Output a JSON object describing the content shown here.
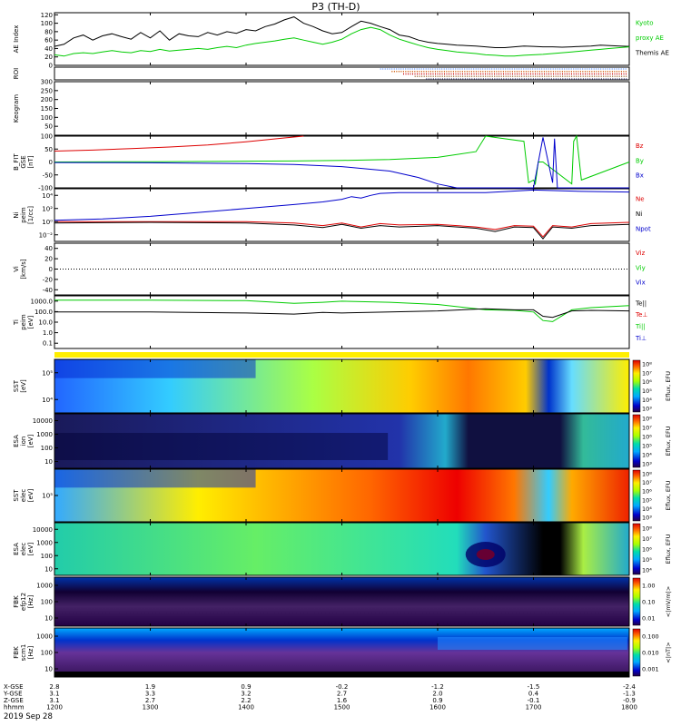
{
  "title": "P3 (TH-D)",
  "date_label": "2019 Sep 28",
  "colors": {
    "kyoto": "#00cc00",
    "black": "#000000",
    "red": "#dd0000",
    "green": "#00cc00",
    "blue": "#0000cc",
    "roi": "#cc5500"
  },
  "chart_data": [
    {
      "type": "line",
      "id": "ae",
      "ylabel": "AE Index",
      "yticks": [
        "0",
        "20",
        "40",
        "60",
        "80",
        "100",
        "120"
      ],
      "ylim": [
        0,
        125
      ],
      "legend": [
        {
          "text": "Kyoto",
          "color": "#00cc00"
        },
        {
          "text": "proxy AE",
          "color": "#00cc00"
        },
        {
          "text": "Themis AE",
          "color": "#000000"
        }
      ],
      "series": [
        {
          "name": "Themis AE",
          "x": [
            1200,
            1210,
            1220,
            1230,
            1240,
            1250,
            1260,
            1270,
            1280,
            1290,
            1300,
            1310,
            1320,
            1330,
            1340,
            1350,
            1360,
            1370,
            1380,
            1390,
            1400,
            1410,
            1420,
            1430,
            1440,
            1450,
            1460,
            1470,
            1480,
            1490,
            1500,
            1510,
            1520,
            1530,
            1540,
            1550,
            1560,
            1570,
            1580,
            1590,
            1600,
            1610,
            1620,
            1630,
            1640,
            1650,
            1660,
            1670,
            1680,
            1690,
            1700,
            1710,
            1720,
            1730,
            1740,
            1750,
            1760,
            1770,
            1780,
            1790,
            1800
          ],
          "values": [
            45,
            50,
            65,
            72,
            60,
            70,
            75,
            68,
            62,
            78,
            65,
            82,
            60,
            75,
            70,
            68,
            78,
            72,
            80,
            76,
            85,
            82,
            92,
            98,
            108,
            115,
            100,
            92,
            82,
            75,
            78,
            92,
            105,
            100,
            92,
            85,
            72,
            68,
            60,
            55,
            52,
            50,
            48,
            47,
            46,
            44,
            42,
            42,
            44,
            46,
            45,
            44,
            44,
            43,
            44,
            45,
            46,
            48,
            47,
            46,
            45
          ]
        },
        {
          "name": "Kyoto proxy AE",
          "x": [
            1200,
            1210,
            1220,
            1230,
            1240,
            1250,
            1260,
            1270,
            1280,
            1290,
            1300,
            1310,
            1320,
            1330,
            1340,
            1350,
            1360,
            1370,
            1380,
            1390,
            1400,
            1410,
            1420,
            1430,
            1440,
            1450,
            1460,
            1470,
            1480,
            1490,
            1500,
            1510,
            1520,
            1530,
            1540,
            1550,
            1560,
            1570,
            1580,
            1590,
            1600,
            1610,
            1620,
            1630,
            1640,
            1650,
            1660,
            1670,
            1680,
            1690,
            1700,
            1710,
            1720,
            1730,
            1740,
            1750,
            1760,
            1770,
            1780,
            1790,
            1800
          ],
          "values": [
            25,
            22,
            28,
            30,
            28,
            32,
            35,
            32,
            30,
            35,
            33,
            38,
            34,
            36,
            38,
            40,
            38,
            42,
            45,
            42,
            48,
            52,
            55,
            58,
            62,
            65,
            60,
            55,
            50,
            55,
            62,
            75,
            85,
            90,
            85,
            72,
            62,
            55,
            48,
            42,
            38,
            35,
            32,
            30,
            28,
            25,
            24,
            22,
            22,
            24,
            25,
            26,
            28,
            30,
            32,
            34,
            36,
            38,
            40,
            42,
            44
          ]
        }
      ]
    },
    {
      "type": "scatter",
      "id": "roi",
      "ylabel": "ROI",
      "rows": 5,
      "x_start": 1540,
      "x_end": 1800
    },
    {
      "type": "line",
      "id": "keogram",
      "ylabel": "Keogram",
      "yticks": [
        "50",
        "100",
        "150",
        "200",
        "250",
        "300"
      ],
      "ylim": [
        0,
        300
      ]
    },
    {
      "type": "line",
      "id": "bfield",
      "ylabel": "B_FIT",
      "ylabel2": "GSE",
      "ylabel3": "[nT]",
      "yticks": [
        "-100",
        "-50",
        "0",
        "50",
        "100"
      ],
      "ylim": [
        -100,
        100
      ],
      "legend": [
        {
          "text": "Bz",
          "color": "#dd0000"
        },
        {
          "text": "By",
          "color": "#00cc00"
        },
        {
          "text": "Bx",
          "color": "#0000cc"
        }
      ],
      "series": [
        {
          "name": "Bz",
          "x": [
            1200,
            1240,
            1280,
            1320,
            1360,
            1400,
            1440,
            1460
          ],
          "values": [
            42,
            46,
            52,
            58,
            66,
            78,
            93,
            100
          ]
        },
        {
          "name": "By",
          "x": [
            1200,
            1300,
            1400,
            1450,
            1500,
            1550,
            1600,
            1640,
            1650,
            1690,
            1695,
            1700,
            1702,
            1705,
            1710,
            1740,
            1742,
            1745,
            1750,
            1800
          ],
          "values": [
            0,
            1,
            3,
            4,
            6,
            10,
            18,
            40,
            100,
            80,
            -80,
            -70,
            -85,
            0,
            0,
            -85,
            80,
            100,
            -70,
            0
          ]
        },
        {
          "name": "Bx",
          "x": [
            1200,
            1300,
            1400,
            1450,
            1500,
            1550,
            1580,
            1600,
            1620,
            1630,
            1700,
            1710,
            1720,
            1722,
            1725,
            1730,
            1800
          ],
          "values": [
            -2,
            -3,
            -6,
            -10,
            -18,
            -35,
            -60,
            -85,
            -100,
            -100,
            -100,
            95,
            -80,
            90,
            -100,
            -100,
            -100
          ]
        }
      ]
    },
    {
      "type": "line",
      "id": "density",
      "ylabel": "Ni",
      "ylabel2": "peim",
      "ylabel3": "[1/cc]",
      "yticks": [
        "10⁻²",
        "10⁰",
        "10²",
        "10⁴"
      ],
      "ylim": [
        -3,
        5
      ],
      "legend": [
        {
          "text": "Ne",
          "color": "#dd0000"
        },
        {
          "text": "Ni",
          "color": "#000000"
        },
        {
          "text": "Npot",
          "color": "#0000cc"
        }
      ],
      "series": [
        {
          "name": "Npot",
          "x": [
            1200,
            1250,
            1300,
            1350,
            1400,
            1450,
            1480,
            1500,
            1510,
            1520,
            1530,
            1540,
            1560,
            1600,
            1650,
            1700,
            1750,
            1800
          ],
          "values": [
            0.2,
            0.4,
            0.8,
            1.4,
            2.0,
            2.6,
            3.0,
            3.4,
            3.8,
            3.6,
            4.0,
            4.3,
            4.4,
            4.4,
            4.4,
            4.8,
            4.6,
            4.5
          ]
        },
        {
          "name": "Ne",
          "x": [
            1200,
            1300,
            1400,
            1450,
            1480,
            1500,
            1520,
            1540,
            1560,
            1600,
            1640,
            1660,
            1680,
            1700,
            1710,
            1720,
            1740,
            1760,
            1800
          ],
          "values": [
            0,
            0,
            0,
            -0.2,
            -0.6,
            -0.2,
            -0.8,
            -0.3,
            -0.5,
            -0.4,
            -0.8,
            -1.2,
            -0.6,
            -0.7,
            -2.3,
            -0.6,
            -0.8,
            -0.3,
            -0.1
          ]
        },
        {
          "name": "Ni",
          "x": [
            1200,
            1300,
            1400,
            1450,
            1480,
            1500,
            1520,
            1540,
            1560,
            1600,
            1640,
            1660,
            1680,
            1700,
            1710,
            1720,
            1740,
            1760,
            1800
          ],
          "values": [
            -0.2,
            -0.1,
            -0.2,
            -0.5,
            -0.9,
            -0.4,
            -1.0,
            -0.6,
            -0.8,
            -0.6,
            -1.0,
            -1.5,
            -0.8,
            -0.9,
            -2.6,
            -0.8,
            -1.0,
            -0.6,
            -0.4
          ]
        }
      ]
    },
    {
      "type": "line",
      "id": "velocity",
      "ylabel": "Vi",
      "ylabel2": "[km/s]",
      "yticks": [
        "-40",
        "-20",
        "0",
        "20",
        "40"
      ],
      "ylim": [
        -50,
        50
      ],
      "legend": [
        {
          "text": "Viz",
          "color": "#dd0000"
        },
        {
          "text": "Viy",
          "color": "#00cc00"
        },
        {
          "text": "Vix",
          "color": "#0000cc"
        }
      ]
    },
    {
      "type": "line",
      "id": "temperature",
      "ylabel": "Ti",
      "ylabel2": "peim",
      "ylabel3": "[eV]",
      "yticks": [
        "0.1",
        "1.0",
        "10.0",
        "100.0",
        "1000.0"
      ],
      "ylim": [
        -1.3,
        3.6
      ],
      "legend": [
        {
          "text": "Te||",
          "color": "#000000"
        },
        {
          "text": "Te⊥",
          "color": "#dd0000"
        },
        {
          "text": "Ti||",
          "color": "#00cc00"
        },
        {
          "text": "Ti⊥",
          "color": "#0000cc"
        }
      ],
      "series": [
        {
          "name": "Ti",
          "x": [
            1200,
            1300,
            1400,
            1450,
            1480,
            1500,
            1550,
            1600,
            1650,
            1680,
            1700,
            1710,
            1720,
            1740,
            1760,
            1800
          ],
          "values": [
            3.2,
            3.2,
            3.15,
            2.9,
            3.0,
            3.1,
            3.0,
            2.8,
            2.3,
            2.25,
            2.1,
            1.3,
            1.2,
            2.3,
            2.5,
            2.7
          ]
        },
        {
          "name": "Te",
          "x": [
            1200,
            1300,
            1400,
            1450,
            1480,
            1500,
            1550,
            1600,
            1650,
            1680,
            1700,
            1710,
            1720,
            1740,
            1760,
            1800
          ],
          "values": [
            2.1,
            2.1,
            2.0,
            1.9,
            2.05,
            2.0,
            2.1,
            2.2,
            2.4,
            2.3,
            2.3,
            1.7,
            1.6,
            2.2,
            2.25,
            2.2
          ]
        }
      ]
    },
    {
      "type": "heatmap",
      "id": "sst-ion",
      "ylabel": "SST",
      "ylabel2": "[eV]",
      "yticks": [
        "10⁴",
        "10⁵"
      ],
      "cbar_label": "Eflux, EFU",
      "cbar_ticks": [
        "10³",
        "10⁴",
        "10⁵",
        "10⁶",
        "10⁷",
        "10⁸"
      ]
    },
    {
      "type": "heatmap",
      "id": "esa-ion",
      "ylabel": "ESA",
      "ylabel2": "ion",
      "ylabel3": "[eV]",
      "yticks": [
        "10",
        "100",
        "1000",
        "10000"
      ],
      "cbar_label": "Eflux, EFU",
      "cbar_ticks": [
        "10³",
        "10⁴",
        "10⁵",
        "10⁶",
        "10⁷",
        "10⁸"
      ]
    },
    {
      "type": "heatmap",
      "id": "sst-elec",
      "ylabel": "SST",
      "ylabel2": "elec",
      "ylabel3": "[eV]",
      "yticks": [
        "10⁵"
      ],
      "cbar_label": "Eflux, EFU",
      "cbar_ticks": [
        "10³",
        "10⁴",
        "10⁵",
        "10⁶",
        "10⁷",
        "10⁸"
      ]
    },
    {
      "type": "heatmap",
      "id": "esa-elec",
      "ylabel": "ESA",
      "ylabel2": "elec",
      "ylabel3": "[eV]",
      "yticks": [
        "10",
        "100",
        "1000",
        "10000"
      ],
      "cbar_label": "Eflux, EFU",
      "cbar_ticks": [
        "10⁴",
        "10⁵",
        "10⁶",
        "10⁷",
        "10⁸"
      ]
    },
    {
      "type": "heatmap",
      "id": "fbk-e",
      "ylabel": "FBK",
      "ylabel2": "efp12",
      "ylabel3": "[Hz]",
      "yticks": [
        "10",
        "100",
        "1000"
      ],
      "cbar_label": "<|mV/m|>",
      "cbar_ticks": [
        "0.01",
        "0.10",
        "1.00"
      ]
    },
    {
      "type": "heatmap",
      "id": "fbk-b",
      "ylabel": "FBK",
      "ylabel2": "scm1",
      "ylabel3": "[Hz]",
      "yticks": [
        "10",
        "100",
        "1000"
      ],
      "cbar_label": "<|nT|>",
      "cbar_ticks": [
        "0.001",
        "0.010",
        "0.100"
      ]
    }
  ],
  "xaxis": {
    "row_labels": [
      "X-GSE",
      "Y-GSE",
      "Z-GSE",
      "hhmm"
    ],
    "columns": [
      {
        "x": 1200,
        "vals": [
          "2.8",
          "3.1",
          "3.1",
          "1200"
        ]
      },
      {
        "x": 1300,
        "vals": [
          "1.9",
          "3.3",
          "2.7",
          "1300"
        ]
      },
      {
        "x": 1400,
        "vals": [
          "0.9",
          "3.2",
          "2.2",
          "1400"
        ]
      },
      {
        "x": 1500,
        "vals": [
          "-0.2",
          "2.7",
          "1.6",
          "1500"
        ]
      },
      {
        "x": 1600,
        "vals": [
          "-1.2",
          "2.0",
          "0.9",
          "1600"
        ]
      },
      {
        "x": 1700,
        "vals": [
          "-1.5",
          "0.4",
          "-0.1",
          "1700"
        ]
      },
      {
        "x": 1800,
        "vals": [
          "-2.4",
          "-1.3",
          "-0.9",
          "1800"
        ]
      }
    ]
  }
}
